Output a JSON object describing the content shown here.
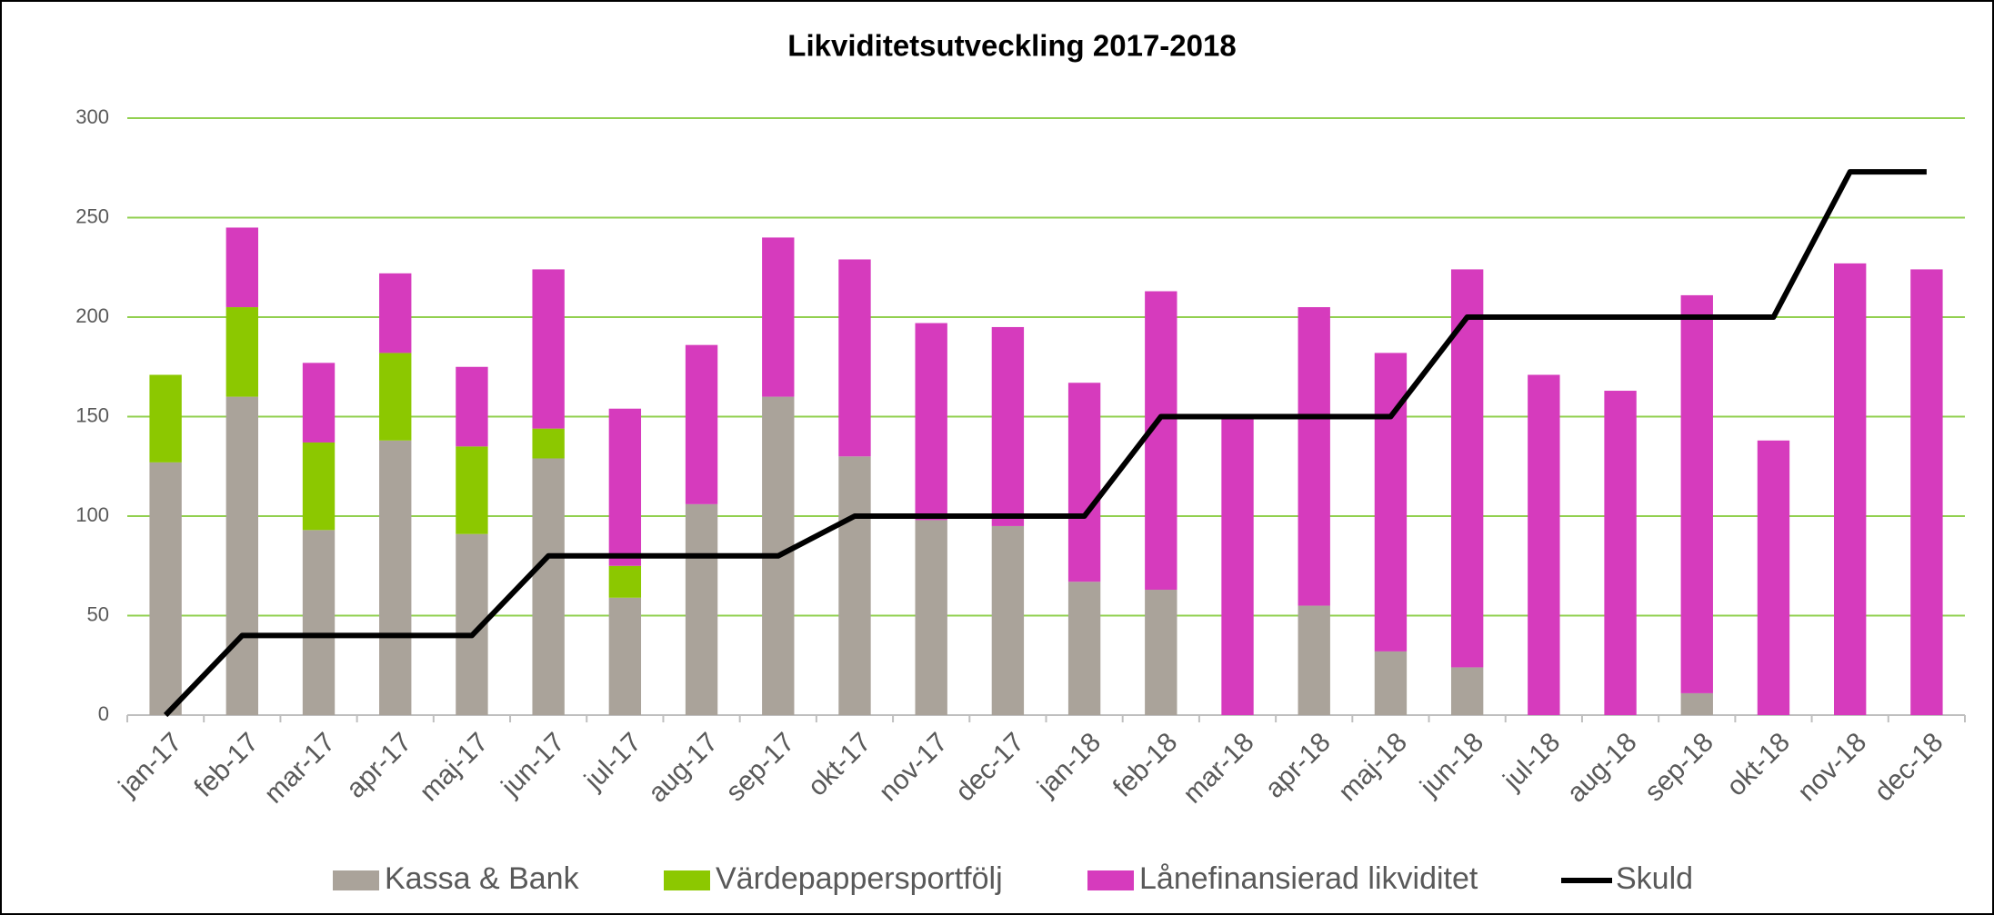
{
  "chart_data": {
    "type": "bar",
    "stacked": true,
    "title": "Likviditetsutveckling 2017-2018",
    "categories": [
      "jan-17",
      "feb-17",
      "mar-17",
      "apr-17",
      "maj-17",
      "jun-17",
      "jul-17",
      "aug-17",
      "sep-17",
      "okt-17",
      "nov-17",
      "dec-17",
      "jan-18",
      "feb-18",
      "mar-18",
      "apr-18",
      "maj-18",
      "jun-18",
      "jul-18",
      "aug-18",
      "sep-18",
      "okt-18",
      "nov-18",
      "dec-18"
    ],
    "series": [
      {
        "name": "Kassa & Bank",
        "color": "#aaa39a",
        "values": [
          127,
          160,
          93,
          138,
          91,
          129,
          59,
          106,
          160,
          130,
          98,
          95,
          67,
          63,
          0,
          55,
          32,
          24,
          0,
          0,
          11,
          0,
          0,
          0
        ]
      },
      {
        "name": "Värdepappersportfölj",
        "color": "#8cc800",
        "values": [
          44,
          45,
          44,
          44,
          44,
          15,
          16,
          0,
          0,
          0,
          0,
          0,
          0,
          0,
          0,
          0,
          0,
          0,
          0,
          0,
          0,
          0,
          0,
          0
        ]
      },
      {
        "name": "Lånefinansierad likviditet",
        "color": "#d63bbd",
        "values": [
          0,
          40,
          40,
          40,
          40,
          80,
          79,
          80,
          80,
          99,
          99,
          100,
          100,
          150,
          149,
          150,
          150,
          200,
          171,
          163,
          200,
          138,
          227,
          224
        ]
      },
      {
        "name": "Skuld",
        "color": "#000000",
        "type": "line",
        "values": [
          0,
          40,
          40,
          40,
          40,
          80,
          80,
          80,
          80,
          100,
          100,
          100,
          100,
          150,
          150,
          150,
          150,
          200,
          200,
          200,
          200,
          200,
          273,
          273
        ]
      }
    ],
    "ylim": [
      0,
      300
    ],
    "yticks": [
      0,
      50,
      100,
      150,
      200,
      250,
      300
    ],
    "grid": true,
    "grid_color": "#92d050",
    "legend": "bottom"
  }
}
